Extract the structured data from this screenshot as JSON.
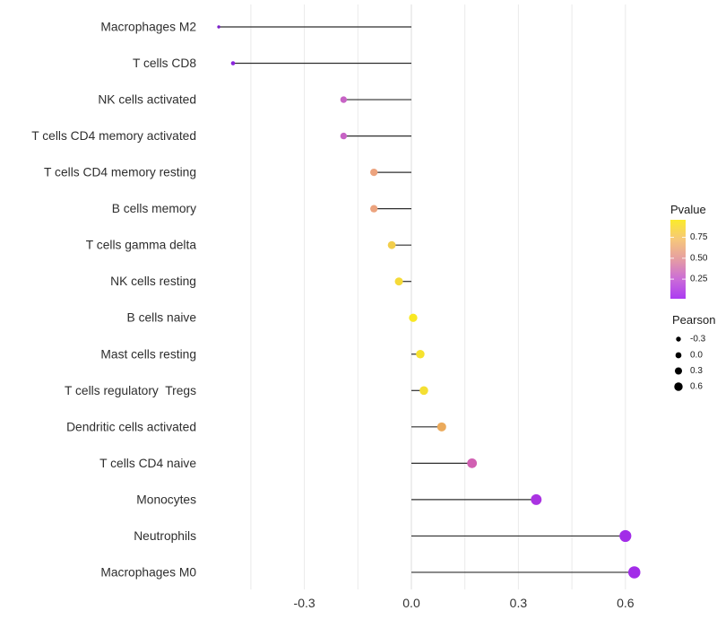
{
  "chart_data": {
    "type": "scatter",
    "subtype": "lollipop",
    "title": "",
    "xlabel": "",
    "ylabel": "",
    "xlim": [
      -0.585,
      0.65
    ],
    "x_ticks": [
      -0.3,
      0.0,
      0.3,
      0.6
    ],
    "x_tick_labels": [
      "-0.3",
      "0.0",
      "0.3",
      "0.6"
    ],
    "gridlines_x": [
      -0.45,
      -0.3,
      -0.15,
      0,
      0.15,
      0.3,
      0.45,
      0.6
    ],
    "grid_on": true,
    "baseline_x": 0,
    "segment_color": "#2e2e2e",
    "points": [
      {
        "label": "Macrophages M2",
        "pearson": -0.54,
        "pvalue": 0.02,
        "color": "#7a1fc8",
        "radius": 1.7
      },
      {
        "label": "T cells CD8",
        "pearson": -0.5,
        "pvalue": 0.03,
        "color": "#8a24dc",
        "radius": 2.3
      },
      {
        "label": "NK cells activated",
        "pearson": -0.19,
        "pvalue": 0.3,
        "color": "#c763c5",
        "radius": 3.7
      },
      {
        "label": "T cells CD4 memory activated",
        "pearson": -0.19,
        "pvalue": 0.3,
        "color": "#c763c5",
        "radius": 3.7
      },
      {
        "label": "T cells CD4 memory resting",
        "pearson": -0.105,
        "pvalue": 0.58,
        "color": "#eca37e",
        "radius": 4.15
      },
      {
        "label": "B cells memory",
        "pearson": -0.105,
        "pvalue": 0.58,
        "color": "#eca37e",
        "radius": 4.15
      },
      {
        "label": "T cells gamma delta",
        "pearson": -0.055,
        "pvalue": 0.78,
        "color": "#f2ce4b",
        "radius": 4.4
      },
      {
        "label": "NK cells resting",
        "pearson": -0.035,
        "pvalue": 0.83,
        "color": "#f5da38",
        "radius": 4.5
      },
      {
        "label": "B cells naive",
        "pearson": 0.005,
        "pvalue": 0.93,
        "color": "#f9e822",
        "radius": 4.65
      },
      {
        "label": "Mast cells resting",
        "pearson": 0.025,
        "pvalue": 0.88,
        "color": "#f6e22e",
        "radius": 4.75
      },
      {
        "label": "T cells regulatory  Tregs",
        "pearson": 0.035,
        "pvalue": 0.87,
        "color": "#f4df33",
        "radius": 4.8
      },
      {
        "label": "Dendritic cells activated",
        "pearson": 0.085,
        "pvalue": 0.68,
        "color": "#ebaa5b",
        "radius": 5.0
      },
      {
        "label": "T cells CD4 naive",
        "pearson": 0.17,
        "pvalue": 0.4,
        "color": "#d160b2",
        "radius": 5.4
      },
      {
        "label": "Monocytes",
        "pearson": 0.35,
        "pvalue": 0.13,
        "color": "#aa33e2",
        "radius": 6.0
      },
      {
        "label": "Neutrophils",
        "pearson": 0.6,
        "pvalue": 0.06,
        "color": "#a22ce8",
        "radius": 6.6
      },
      {
        "label": "Macrophages M0",
        "pearson": 0.625,
        "pvalue": 0.05,
        "color": "#a22ce8",
        "radius": 6.75
      }
    ]
  },
  "legend": {
    "pvalue": {
      "title": "Pvalue",
      "range": [
        0.015,
        0.96
      ],
      "ticks": [
        {
          "label": "0.75",
          "value": 0.75
        },
        {
          "label": "0.50",
          "value": 0.5
        },
        {
          "label": "0.25",
          "value": 0.25
        }
      ],
      "gradient_top_to_bottom": [
        "#fbeb2b",
        "#f6c77b",
        "#e59da3",
        "#cb6dd7",
        "#ac3bf2"
      ]
    },
    "pearson": {
      "title": "Pearson",
      "dot_color": "#000000",
      "items": [
        {
          "label": "-0.3",
          "value": -0.3,
          "radius": 2.7
        },
        {
          "label": "0.0",
          "value": 0.0,
          "radius": 3.35
        },
        {
          "label": "0.3",
          "value": 0.3,
          "radius": 4.0
        },
        {
          "label": "0.6",
          "value": 0.6,
          "radius": 4.7
        }
      ]
    }
  },
  "colors": {
    "background": "#ffffff",
    "gridline": "#eaeaea",
    "gridline_zero": "#dcdcdc",
    "segment": "#2e2e2e",
    "axis_text": "#2e2e2e"
  }
}
